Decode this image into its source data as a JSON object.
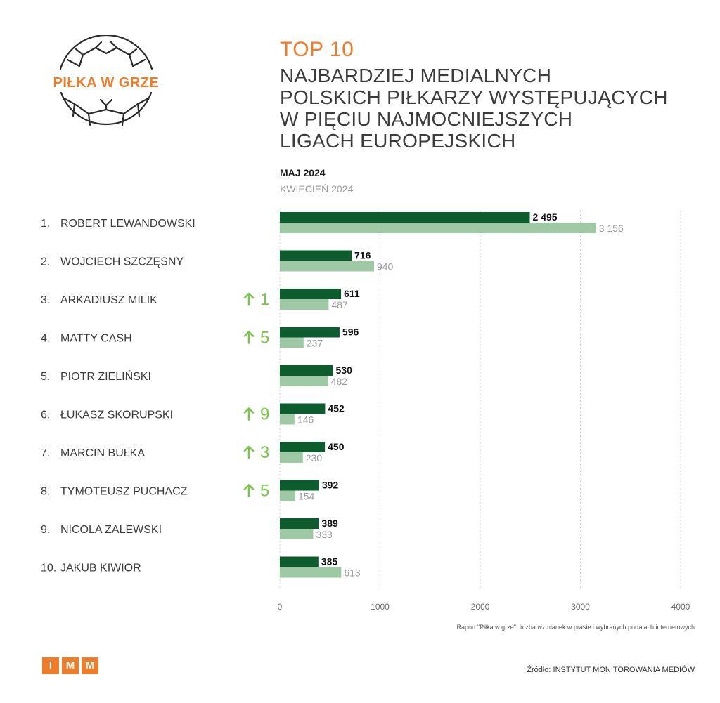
{
  "logo": {
    "text": "PIŁKA W GRZE"
  },
  "header": {
    "top": "TOP 10",
    "title_lines": [
      "NAJBARDZIEJ MEDIALNYCH",
      "POLSKICH PIŁKARZY WYSTĘPUJĄCYCH",
      "W PIĘCIU NAJMOCNIEJSZYCH",
      "LIGACH EUROPEJSKICH"
    ]
  },
  "colors": {
    "current": "#0d5c2e",
    "previous": "#9fc8a5",
    "accent": "#ee7d2b",
    "up_arrow": "#7dc24e"
  },
  "chart_data": {
    "type": "bar",
    "orientation": "horizontal",
    "categories": [
      "ROBERT LEWANDOWSKI",
      "WOJCIECH SZCZĘSNY",
      "ARKADIUSZ MILIK",
      "MATTY CASH",
      "PIOTR ZIELIŃSKI",
      "ŁUKASZ SKORUPSKI",
      "MARCIN BUŁKA",
      "TYMOTEUSZ PUCHACZ",
      "NICOLA ZALEWSKI",
      "JAKUB KIWIOR"
    ],
    "ranks": [
      "1.",
      "2.",
      "3.",
      "4.",
      "5.",
      "6.",
      "7.",
      "8.",
      "9.",
      "10."
    ],
    "rank_changes": [
      "",
      "",
      "1",
      "5",
      "",
      "9",
      "3",
      "5",
      "",
      ""
    ],
    "series": [
      {
        "name": "MAJ 2024",
        "values": [
          2495,
          716,
          611,
          596,
          530,
          452,
          450,
          392,
          389,
          385
        ],
        "labels": [
          "2 495",
          "716",
          "611",
          "596",
          "530",
          "452",
          "450",
          "392",
          "389",
          "385"
        ]
      },
      {
        "name": "KWIECIEŃ 2024",
        "values": [
          3156,
          940,
          487,
          237,
          482,
          146,
          230,
          154,
          333,
          613
        ],
        "labels": [
          "3 156",
          "940",
          "487",
          "237",
          "482",
          "146",
          "230",
          "154",
          "333",
          "613"
        ]
      }
    ],
    "xlim": [
      0,
      4000
    ],
    "xticks": [
      0,
      1000,
      2000,
      3000,
      4000
    ],
    "grid": true,
    "legend_placement": "top"
  },
  "footer": {
    "note": "Raport \"Piłka w grze\": liczba wzmianek w prasie i wybranych portalach internetowych",
    "imm_letters": [
      "I",
      "M",
      "M"
    ],
    "source": "Źródło: INSTYTUT MONITOROWANIA MEDIÓW"
  }
}
